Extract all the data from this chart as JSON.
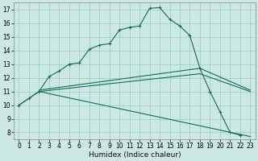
{
  "title": "",
  "xlabel": "Humidex (Indice chaleur)",
  "xlim": [
    -0.5,
    23.5
  ],
  "ylim": [
    7.5,
    17.5
  ],
  "yticks": [
    8,
    9,
    10,
    11,
    12,
    13,
    14,
    15,
    16,
    17
  ],
  "xticks": [
    0,
    1,
    2,
    3,
    4,
    5,
    6,
    7,
    8,
    9,
    10,
    11,
    12,
    13,
    14,
    15,
    16,
    17,
    18,
    19,
    20,
    21,
    22,
    23
  ],
  "background_color": "#cce8e4",
  "grid_color": "#99ccc4",
  "line_color": "#1a6b5a",
  "line1_x": [
    0,
    1,
    2,
    3,
    4,
    5,
    6,
    7,
    8,
    9,
    10,
    11,
    12,
    13,
    14,
    15,
    16,
    17,
    18,
    19,
    20,
    21,
    22
  ],
  "line1_y": [
    10.0,
    10.5,
    11.0,
    12.1,
    12.5,
    13.0,
    13.1,
    14.1,
    14.4,
    14.5,
    15.5,
    15.7,
    15.8,
    17.1,
    17.15,
    16.3,
    15.8,
    15.1,
    12.7,
    11.0,
    9.5,
    8.0,
    7.8
  ],
  "line2_x": [
    0,
    2,
    23
  ],
  "line2_y": [
    10.0,
    11.0,
    7.7
  ],
  "line3_x": [
    2,
    18,
    23
  ],
  "line3_y": [
    11.0,
    12.3,
    11.0
  ],
  "line4_x": [
    2,
    18,
    23
  ],
  "line4_y": [
    11.1,
    12.7,
    11.1
  ],
  "tick_fontsize": 5.5,
  "xlabel_fontsize": 6.5
}
